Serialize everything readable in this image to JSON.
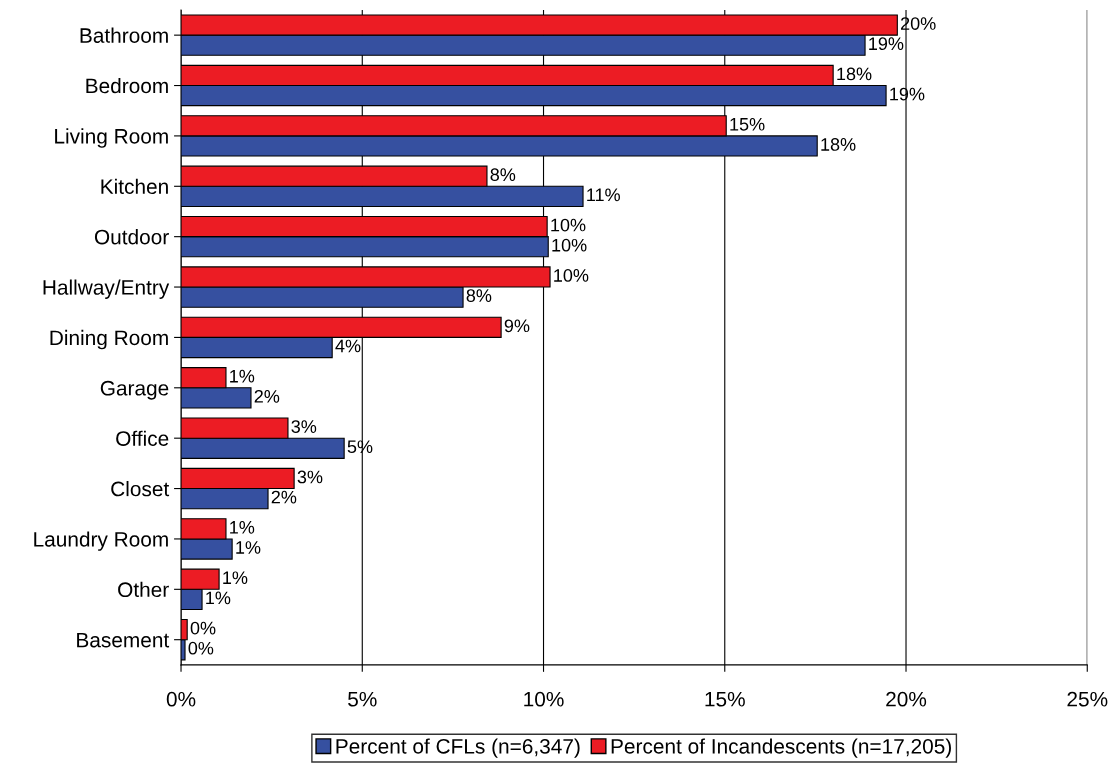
{
  "chart_data": {
    "type": "bar",
    "orientation": "horizontal",
    "categories": [
      "Bathroom",
      "Bedroom",
      "Living Room",
      "Kitchen",
      "Outdoor",
      "Hallway/Entry",
      "Dining Room",
      "Garage",
      "Office",
      "Closet",
      "Laundry Room",
      "Other",
      "Basement"
    ],
    "series": [
      {
        "name": "Percent of CFLs (n=6,347)",
        "color": "#3650a0",
        "values": [
          18.87,
          19.45,
          17.55,
          11.09,
          10.13,
          7.78,
          4.17,
          1.93,
          4.5,
          2.4,
          1.41,
          0.58,
          0.11
        ],
        "value_labels": [
          "19%",
          "19%",
          "18%",
          "11%",
          "10%",
          "8%",
          "4%",
          "2%",
          "5%",
          "2%",
          "1%",
          "1%",
          "0%"
        ]
      },
      {
        "name": "Percent of Incandescents (n=17,205)",
        "color": "#ec1c24",
        "values": [
          19.76,
          17.99,
          15.04,
          8.44,
          10.1,
          10.18,
          8.83,
          1.24,
          2.95,
          3.12,
          1.24,
          1.05,
          0.17
        ],
        "value_labels": [
          "20%",
          "18%",
          "15%",
          "8%",
          "10%",
          "10%",
          "9%",
          "1%",
          "3%",
          "3%",
          "1%",
          "1%",
          "0%"
        ]
      }
    ],
    "xlim": [
      0,
      25
    ],
    "xticks": [
      {
        "value": 0,
        "label": "0%"
      },
      {
        "value": 5,
        "label": "5%"
      },
      {
        "value": 10,
        "label": "10%"
      },
      {
        "value": 15,
        "label": "15%"
      },
      {
        "value": 20,
        "label": "20%"
      },
      {
        "value": 25,
        "label": "25%"
      }
    ],
    "grid": "x",
    "legend": "bottom"
  }
}
